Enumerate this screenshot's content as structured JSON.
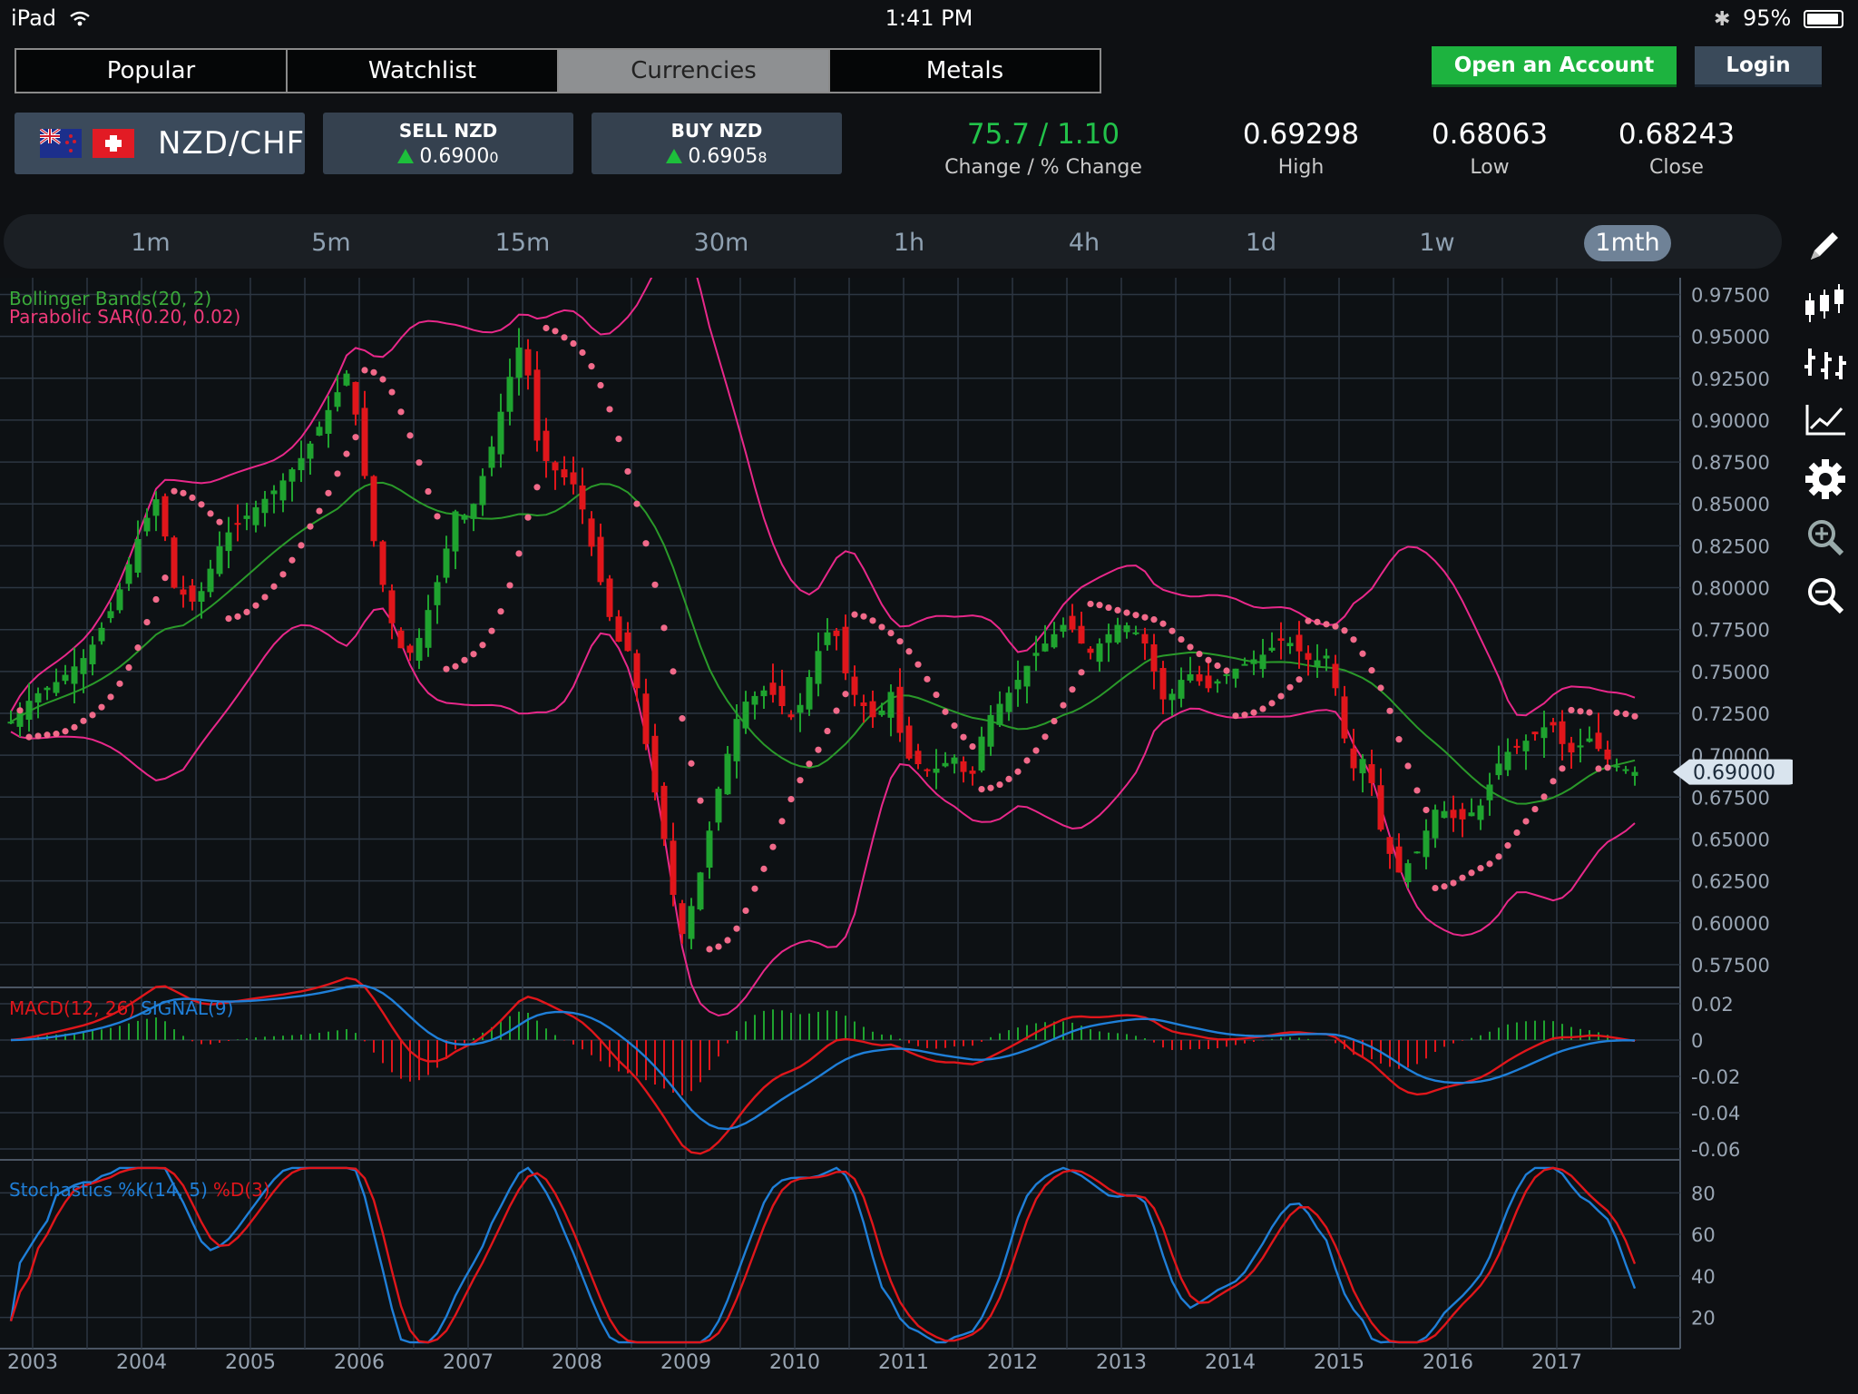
{
  "status": {
    "device": "iPad",
    "time": "1:41 PM",
    "battery": "95%"
  },
  "tabs": [
    {
      "label": "Popular"
    },
    {
      "label": "Watchlist"
    },
    {
      "label": "Currencies",
      "active": true
    },
    {
      "label": "Metals"
    }
  ],
  "header": {
    "open_account": "Open an Account",
    "login": "Login"
  },
  "instrument": {
    "pair": "NZD/CHF",
    "sell": {
      "label": "SELL NZD",
      "price_main": "0.6900",
      "price_small": "0"
    },
    "buy": {
      "label": "BUY NZD",
      "price_main": "0.6905",
      "price_small": "8"
    }
  },
  "stats": {
    "change": "75.7 / 1.10",
    "change_label": "Change / % Change",
    "high": "0.69298",
    "high_label": "High",
    "low": "0.68063",
    "low_label": "Low",
    "close": "0.68243",
    "close_label": "Close"
  },
  "timeframes": [
    "1m",
    "5m",
    "15m",
    "30m",
    "1h",
    "4h",
    "1d",
    "1w",
    "1mth"
  ],
  "active_timeframe": "1mth",
  "tools": [
    "pencil-icon",
    "candlestick-icon",
    "bars-icon",
    "line-chart-icon",
    "gear-icon",
    "zoom-in-icon",
    "zoom-out-icon"
  ],
  "colors": {
    "up": "#1fa32f",
    "down": "#e0161b",
    "band": "#e8288a",
    "sar": "#f16a8a",
    "mid": "#2a9a2a",
    "macd": "#e0161b",
    "signal": "#1f7fd8",
    "accent": "#1db33f"
  },
  "chart_data": {
    "type": "candlestick",
    "x_ticks": [
      "2003",
      "2004",
      "2005",
      "2006",
      "2007",
      "2008",
      "2009",
      "2010",
      "2011",
      "2012",
      "2013",
      "2014",
      "2015",
      "2016",
      "2017"
    ],
    "price_axis": {
      "ticks": [
        "0.97500",
        "0.95000",
        "0.92500",
        "0.90000",
        "0.87500",
        "0.85000",
        "0.82500",
        "0.80000",
        "0.77500",
        "0.75000",
        "0.72500",
        "0.70000",
        "0.67500",
        "0.65000",
        "0.62500",
        "0.60000",
        "0.57500"
      ],
      "range": [
        0.5625,
        0.985
      ]
    },
    "current_price": "0.69000",
    "indicators": {
      "bollinger": "Bollinger Bands(20, 2)",
      "sar": "Parabolic SAR(0.20, 0.02)",
      "macd_label": "MACD(12, 26)",
      "signal_label": "SIGNAL(9)",
      "stoch_k": "Stochastics %K(14, 5)",
      "stoch_d": "%D(3)"
    },
    "macd_axis": {
      "ticks": [
        "0.02",
        "0",
        "-0.02",
        "-0.04",
        "-0.06"
      ],
      "range": [
        -0.065,
        0.028
      ]
    },
    "stoch_axis": {
      "ticks": [
        "80",
        "60",
        "40",
        "20"
      ],
      "range": [
        5,
        95
      ]
    },
    "close_series": [
      [
        2002.8,
        0.72
      ],
      [
        2003.0,
        0.735
      ],
      [
        2003.25,
        0.745
      ],
      [
        2003.5,
        0.76
      ],
      [
        2003.75,
        0.79
      ],
      [
        2004.0,
        0.835
      ],
      [
        2004.15,
        0.855
      ],
      [
        2004.3,
        0.8
      ],
      [
        2004.5,
        0.79
      ],
      [
        2004.75,
        0.83
      ],
      [
        2005.0,
        0.845
      ],
      [
        2005.25,
        0.86
      ],
      [
        2005.5,
        0.88
      ],
      [
        2005.75,
        0.91
      ],
      [
        2005.9,
        0.93
      ],
      [
        2006.0,
        0.89
      ],
      [
        2006.15,
        0.82
      ],
      [
        2006.35,
        0.765
      ],
      [
        2006.5,
        0.76
      ],
      [
        2006.75,
        0.81
      ],
      [
        2006.9,
        0.85
      ],
      [
        2007.0,
        0.84
      ],
      [
        2007.2,
        0.88
      ],
      [
        2007.4,
        0.93
      ],
      [
        2007.5,
        0.95
      ],
      [
        2007.65,
        0.88
      ],
      [
        2007.8,
        0.87
      ],
      [
        2008.0,
        0.86
      ],
      [
        2008.15,
        0.82
      ],
      [
        2008.35,
        0.77
      ],
      [
        2008.5,
        0.76
      ],
      [
        2008.65,
        0.7
      ],
      [
        2008.8,
        0.65
      ],
      [
        2008.95,
        0.59
      ],
      [
        2009.1,
        0.62
      ],
      [
        2009.3,
        0.68
      ],
      [
        2009.5,
        0.73
      ],
      [
        2009.75,
        0.74
      ],
      [
        2010.0,
        0.72
      ],
      [
        2010.2,
        0.76
      ],
      [
        2010.35,
        0.78
      ],
      [
        2010.5,
        0.74
      ],
      [
        2010.75,
        0.72
      ],
      [
        2010.9,
        0.74
      ],
      [
        2011.0,
        0.7
      ],
      [
        2011.25,
        0.69
      ],
      [
        2011.5,
        0.7
      ],
      [
        2011.6,
        0.68
      ],
      [
        2011.75,
        0.72
      ],
      [
        2012.0,
        0.74
      ],
      [
        2012.2,
        0.76
      ],
      [
        2012.5,
        0.78
      ],
      [
        2012.7,
        0.76
      ],
      [
        2013.0,
        0.78
      ],
      [
        2013.2,
        0.77
      ],
      [
        2013.4,
        0.73
      ],
      [
        2013.6,
        0.75
      ],
      [
        2013.8,
        0.74
      ],
      [
        2014.0,
        0.75
      ],
      [
        2014.3,
        0.76
      ],
      [
        2014.5,
        0.77
      ],
      [
        2014.75,
        0.755
      ],
      [
        2014.9,
        0.76
      ],
      [
        2015.0,
        0.73
      ],
      [
        2015.1,
        0.69
      ],
      [
        2015.25,
        0.7
      ],
      [
        2015.4,
        0.65
      ],
      [
        2015.55,
        0.63
      ],
      [
        2015.7,
        0.64
      ],
      [
        2015.9,
        0.67
      ],
      [
        2016.1,
        0.66
      ],
      [
        2016.3,
        0.67
      ],
      [
        2016.5,
        0.7
      ],
      [
        2016.75,
        0.71
      ],
      [
        2016.95,
        0.72
      ],
      [
        2017.1,
        0.7
      ],
      [
        2017.3,
        0.71
      ],
      [
        2017.5,
        0.695
      ],
      [
        2017.7,
        0.69
      ]
    ]
  }
}
